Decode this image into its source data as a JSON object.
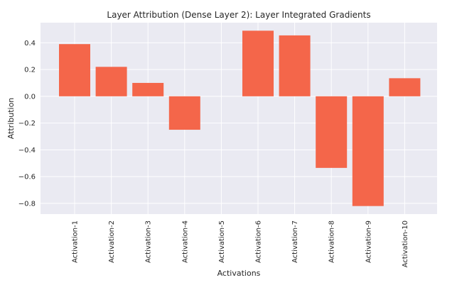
{
  "chart_data": {
    "type": "bar",
    "title": "Layer Attribution (Dense Layer 2): Layer Integrated Gradients",
    "xlabel": "Activations",
    "ylabel": "Attribution",
    "categories": [
      "Activation-1",
      "Activation-2",
      "Activation-3",
      "Activation-4",
      "Activation-5",
      "Activation-6",
      "Activation-7",
      "Activation-8",
      "Activation-9",
      "Activation-10"
    ],
    "values": [
      0.39,
      0.22,
      0.1,
      -0.25,
      0.0,
      0.49,
      0.455,
      -0.535,
      -0.82,
      0.135
    ],
    "ylim": [
      -0.88,
      0.55
    ],
    "yticks": [
      0.4,
      0.2,
      0.0,
      -0.2,
      -0.4,
      -0.6,
      -0.8
    ],
    "ytick_labels": [
      "0.4",
      "0.2",
      "0.0",
      "−0.2",
      "−0.4",
      "−0.6",
      "−0.8"
    ],
    "grid": true,
    "colors": {
      "bar": "#f4664a",
      "background": "#eaeaf2",
      "grid": "#ffffff"
    }
  }
}
